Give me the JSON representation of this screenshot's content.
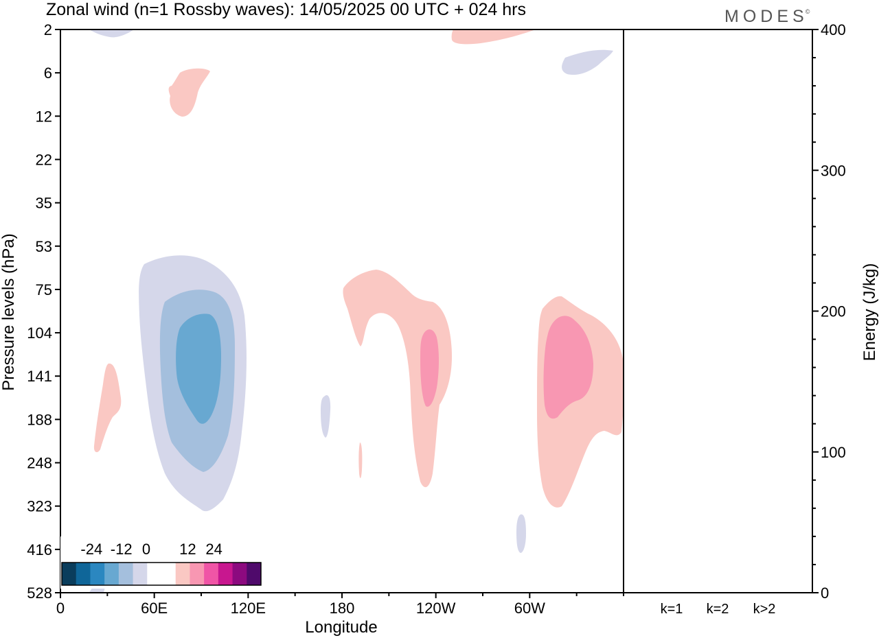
{
  "chart_data": {
    "type": "heatmap",
    "title": "Zonal wind (n=1 Rossby waves):  14/05/2025  00 UTC  + 024 hrs",
    "brand": "MODES",
    "brand_mark": "©",
    "xlabel": "Longitude",
    "ylabel": "Pressure levels (hPa)",
    "ylabel_right": "Energy (J/kg)",
    "x_ticks": [
      "0",
      "60E",
      "120E",
      "180",
      "120W",
      "60W"
    ],
    "x_tick_values": [
      0,
      60,
      120,
      180,
      240,
      300
    ],
    "xlim": [
      0,
      360
    ],
    "y_levels": [
      "2",
      "6",
      "12",
      "22",
      "35",
      "53",
      "75",
      "104",
      "141",
      "188",
      "248",
      "323",
      "416",
      "528"
    ],
    "energy_ticks": [
      "0",
      "100",
      "200",
      "300",
      "400"
    ],
    "energy_tick_values": [
      0,
      100,
      200,
      300,
      400
    ],
    "energy_ylim": [
      0,
      400
    ],
    "colorbar": {
      "labels": [
        "-24",
        "-12",
        "0",
        "12",
        "24"
      ],
      "label_values": [
        -24,
        -12,
        0,
        12,
        24
      ],
      "colors": [
        "#0a3d5c",
        "#0f6699",
        "#2b87c0",
        "#68a8d1",
        "#a4bfdd",
        "#d5d7ea",
        "#ffffff",
        "#ffffff",
        "#fac8c3",
        "#f897b2",
        "#f055a6",
        "#c8178f",
        "#8c0a7f",
        "#4f0a6b"
      ]
    },
    "energy_bars": {
      "categories": [
        "k=1",
        "k=2",
        "k>2"
      ],
      "values": [
        0,
        0,
        0
      ]
    },
    "contours": [
      {
        "level": 6,
        "center_lon": 65,
        "center_level": "10",
        "color": "#fac8c3"
      },
      {
        "level": 6,
        "center_lon": 23,
        "center_level": "175",
        "color": "#fac8c3"
      },
      {
        "level": -6,
        "center_lon": 72,
        "center_level": "141",
        "color": "#d5d7ea"
      },
      {
        "level": -12,
        "center_lon": 72,
        "center_level": "141",
        "color": "#a4bfdd"
      },
      {
        "level": -18,
        "center_lon": 72,
        "center_level": "141",
        "color": "#68a8d1"
      },
      {
        "level": 6,
        "center_lon": 220,
        "center_level": "141",
        "color": "#fac8c3"
      },
      {
        "level": 12,
        "center_lon": 235,
        "center_level": "141",
        "color": "#f897b2"
      },
      {
        "level": 6,
        "center_lon": 320,
        "center_level": "160",
        "color": "#fac8c3"
      },
      {
        "level": 12,
        "center_lon": 322,
        "center_level": "141",
        "color": "#f897b2"
      },
      {
        "level": 6,
        "center_lon": 270,
        "center_level": "2",
        "color": "#fac8c3"
      },
      {
        "level": -6,
        "center_lon": 335,
        "center_level": "5",
        "color": "#d5d7ea"
      },
      {
        "level": -6,
        "center_lon": 32,
        "center_level": "2",
        "color": "#d5d7ea"
      },
      {
        "level": -6,
        "center_lon": 168,
        "center_level": "188",
        "color": "#d5d7ea"
      },
      {
        "level": -6,
        "center_lon": 297,
        "center_level": "416",
        "color": "#d5d7ea"
      },
      {
        "level": 6,
        "center_lon": 184,
        "center_level": "248",
        "color": "#fac8c3"
      }
    ]
  }
}
